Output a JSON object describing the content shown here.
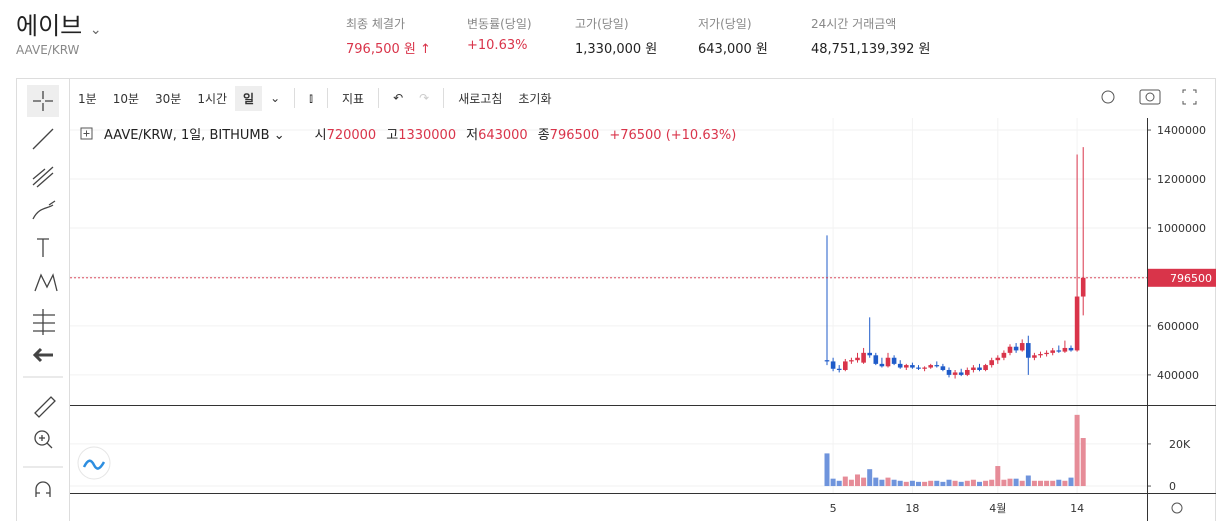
{
  "header": {
    "title": "에이브",
    "subtitle": "AAVE/KRW",
    "stats": [
      {
        "label": "최종 체결가",
        "value": "796,500 원"
      },
      {
        "label": "변동률(당일)",
        "value": "+10.63%"
      },
      {
        "label": "고가(당일)",
        "value": "1,330,000 원"
      },
      {
        "label": "저가(당일)",
        "value": "643,000 원"
      },
      {
        "label": "24시간 거래금액",
        "value": "48,751,139,392 원"
      }
    ]
  },
  "toolbar": {
    "intervals": [
      "1분",
      "10분",
      "30분",
      "1시간",
      "일"
    ],
    "indicator": "지표",
    "refresh": "새로고침",
    "reset": "초기화"
  },
  "chart_data": {
    "type": "candlestick",
    "symbol": "AAVE/KRW, 1일, BITHUMB",
    "ohlc_labels": [
      "시",
      "고",
      "저",
      "종"
    ],
    "legend_change": "+76500 (+10.63%)",
    "categories": [
      null,
      "5",
      null,
      null,
      null,
      null,
      null,
      null,
      null,
      null,
      null,
      null,
      null,
      null,
      "18",
      null,
      null,
      null,
      null,
      null,
      null,
      null,
      null,
      null,
      null,
      null,
      null,
      null,
      "4월",
      null,
      null,
      null,
      null,
      null,
      null,
      null,
      null,
      null,
      null,
      null,
      null,
      "14",
      null
    ],
    "open": [
      460000,
      455000,
      425000,
      420000,
      455000,
      460000,
      450000,
      490000,
      480000,
      445000,
      435000,
      470000,
      445000,
      430000,
      440000,
      430000,
      425000,
      430000,
      440000,
      435000,
      420000,
      400000,
      410000,
      400000,
      420000,
      430000,
      420000,
      440000,
      460000,
      470000,
      490000,
      515000,
      500000,
      530000,
      470000,
      480000,
      485000,
      490000,
      500000,
      495000,
      510000,
      500000,
      720000
    ],
    "high": [
      970000,
      470000,
      440000,
      465000,
      470000,
      490000,
      510000,
      635000,
      490000,
      470000,
      490000,
      480000,
      460000,
      445000,
      450000,
      440000,
      435000,
      445000,
      455000,
      445000,
      430000,
      420000,
      425000,
      430000,
      440000,
      445000,
      445000,
      470000,
      480000,
      500000,
      525000,
      530000,
      545000,
      560000,
      490000,
      495000,
      500000,
      510000,
      520000,
      540000,
      520000,
      1300000,
      1330000
    ],
    "low": [
      440000,
      415000,
      410000,
      415000,
      445000,
      450000,
      445000,
      470000,
      440000,
      430000,
      430000,
      440000,
      425000,
      420000,
      425000,
      420000,
      415000,
      425000,
      430000,
      415000,
      390000,
      385000,
      395000,
      395000,
      410000,
      415000,
      415000,
      430000,
      445000,
      460000,
      480000,
      490000,
      495000,
      400000,
      460000,
      470000,
      475000,
      480000,
      490000,
      490000,
      495000,
      495000,
      643000
    ],
    "close": [
      455000,
      425000,
      420000,
      455000,
      460000,
      470000,
      490000,
      480000,
      445000,
      435000,
      470000,
      445000,
      430000,
      440000,
      430000,
      425000,
      430000,
      440000,
      435000,
      420000,
      400000,
      410000,
      400000,
      420000,
      430000,
      420000,
      440000,
      460000,
      470000,
      490000,
      515000,
      500000,
      530000,
      470000,
      480000,
      485000,
      490000,
      500000,
      495000,
      510000,
      500000,
      720000,
      796500
    ],
    "volume": [
      15500,
      3500,
      2500,
      4500,
      3000,
      5500,
      4000,
      8000,
      4000,
      3000,
      4000,
      3000,
      2500,
      2000,
      2500,
      2000,
      2000,
      2500,
      2500,
      2000,
      3000,
      2500,
      2000,
      2500,
      3000,
      2000,
      2500,
      3000,
      9500,
      3000,
      3500,
      3500,
      2500,
      5000,
      2500,
      2500,
      2500,
      2500,
      3000,
      2500,
      4000,
      33800,
      22800
    ],
    "up_color": "#d9344a",
    "down_color": "#1f5bc9",
    "volume_up_color": "#e68c98",
    "volume_down_color": "#6f94dc",
    "ylim": [
      277000,
      1441000
    ],
    "yticks": [
      400000,
      600000,
      800000,
      1000000,
      1200000,
      1400000
    ],
    "volume_ylim": [
      -3300,
      38000
    ],
    "volume_yticks": [
      0,
      {
        "value": 20000,
        "label": "20K"
      }
    ],
    "grid": true
  }
}
